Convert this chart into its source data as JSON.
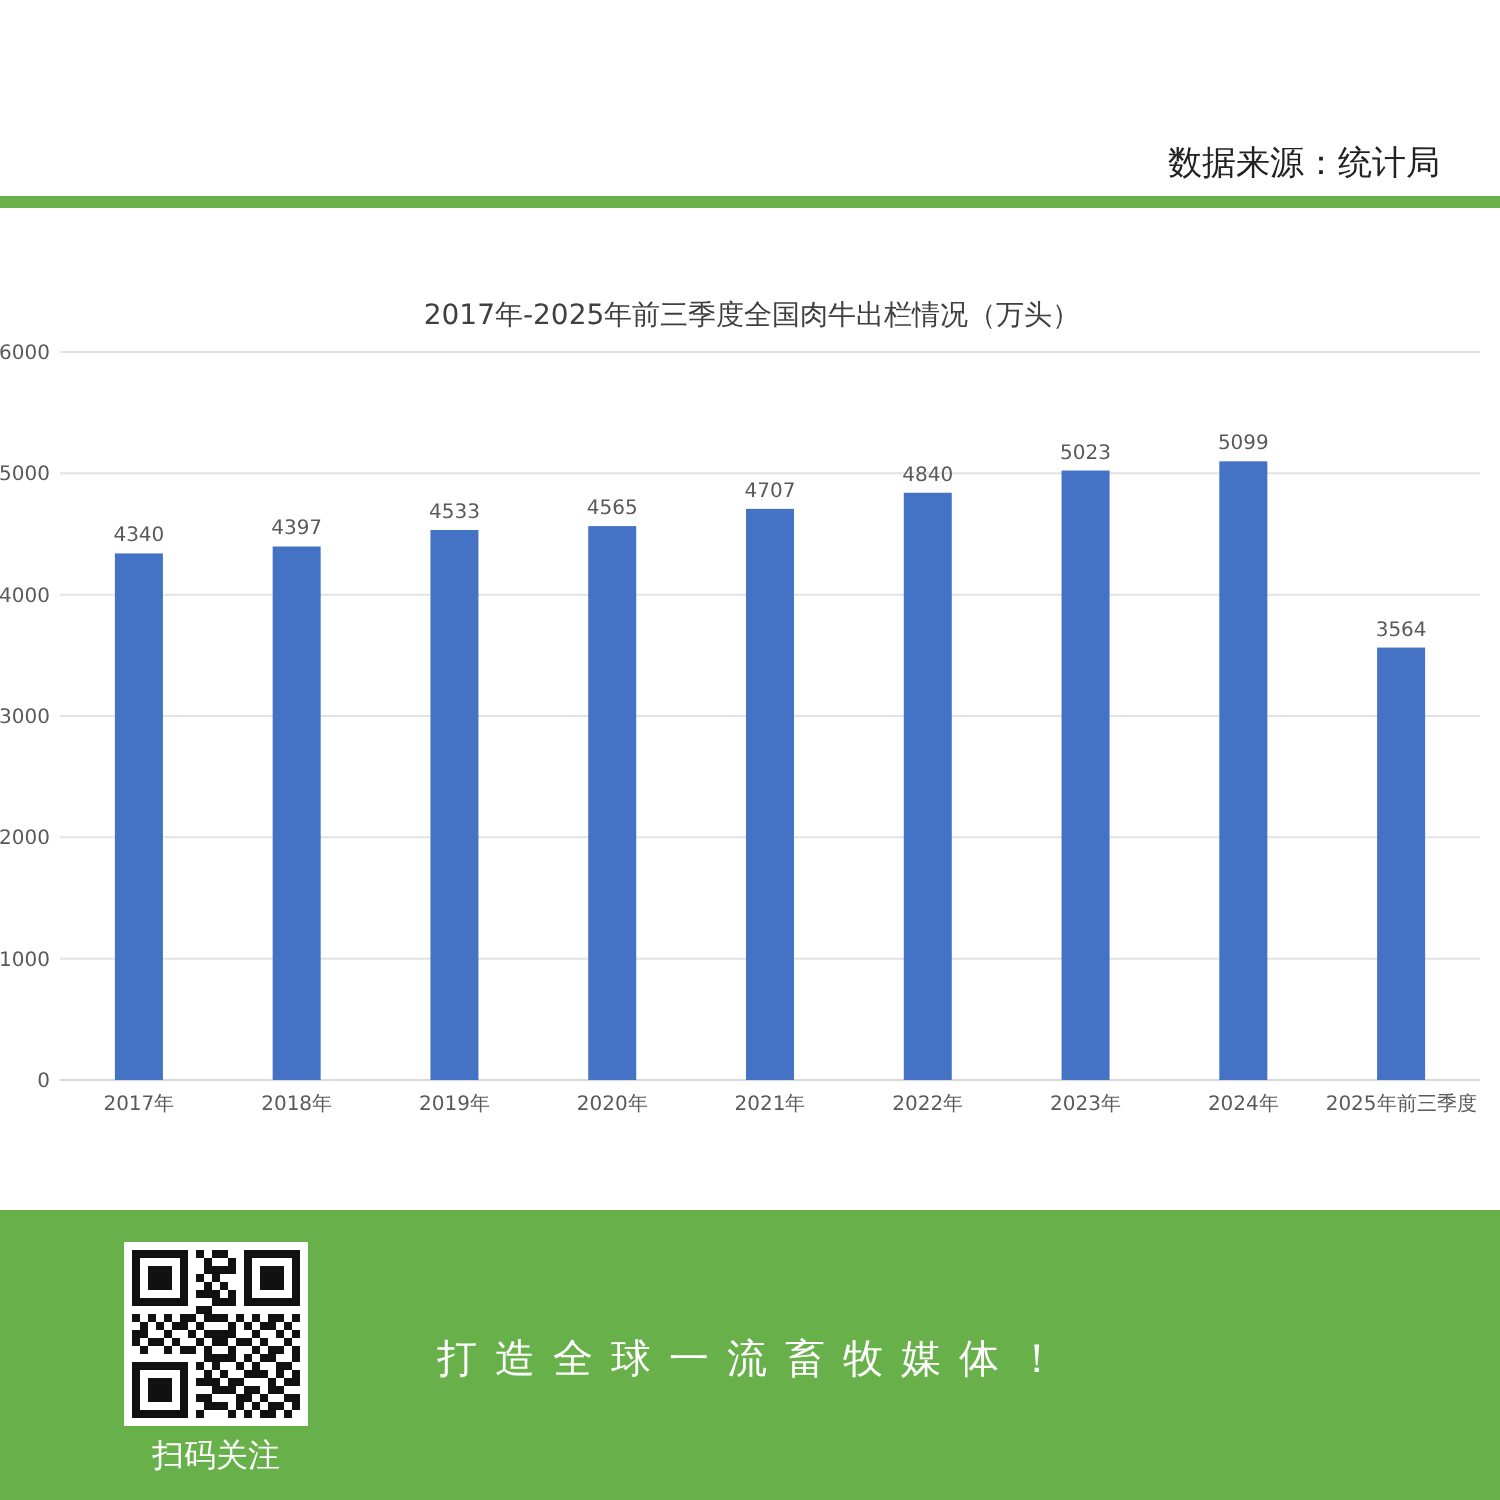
{
  "chart_data": {
    "type": "bar",
    "title": "2017年-2025年前三季度全国肉牛出栏情况（万头）",
    "categories": [
      "2017年",
      "2018年",
      "2019年",
      "2020年",
      "2021年",
      "2022年",
      "2023年",
      "2024年",
      "2025年前三季度"
    ],
    "values": [
      4340,
      4397,
      4533,
      4565,
      4707,
      4840,
      5023,
      5099,
      3564
    ],
    "color": "#4472c4",
    "data_labels": true,
    "ylim": [
      0,
      6000
    ],
    "yticks": [
      0,
      1000,
      2000,
      3000,
      4000,
      5000,
      6000
    ],
    "grid": "y",
    "annotations": [
      "数据来源：统计局",
      "打造全球一流畜牧媒体！",
      "扫码关注"
    ]
  }
}
